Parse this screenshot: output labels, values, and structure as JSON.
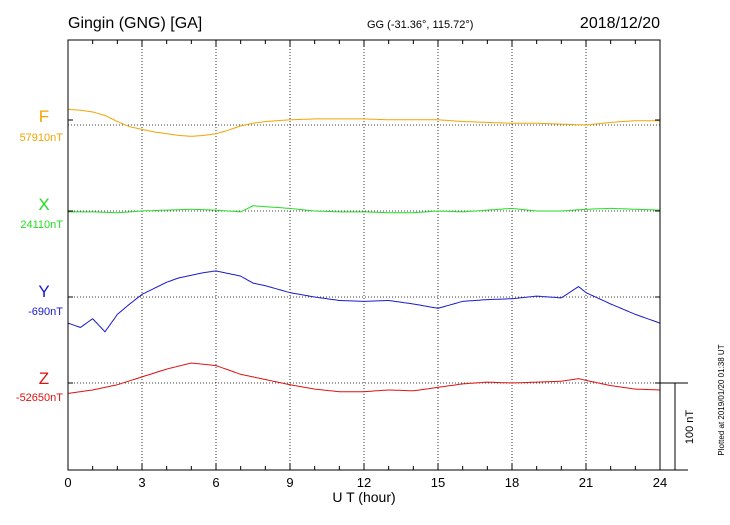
{
  "header": {
    "station": "Gingin (GNG)  [GA]",
    "coords": "GG (-31.36°, 115.72°)",
    "date": "2018/12/20"
  },
  "footer": {
    "plotted": "Plotted at 2019/01/20 01:38 UT"
  },
  "chart_data": {
    "type": "line",
    "xlabel": "U T (hour)",
    "xlim": [
      0,
      24
    ],
    "xticks": [
      0,
      3,
      6,
      9,
      12,
      15,
      18,
      21,
      24
    ],
    "scale_bar_label": "100 nT",
    "scale_bar_nT": 100,
    "grid": true,
    "series": [
      {
        "name": "F",
        "baseline_label": "57910nT",
        "color": "#f0a500",
        "points": [
          [
            0,
            18
          ],
          [
            0.5,
            17
          ],
          [
            1,
            15
          ],
          [
            1.5,
            11
          ],
          [
            2,
            4
          ],
          [
            2.5,
            -2
          ],
          [
            3,
            -5
          ],
          [
            3.5,
            -8
          ],
          [
            4,
            -10
          ],
          [
            4.5,
            -12
          ],
          [
            5,
            -13
          ],
          [
            5.5,
            -12
          ],
          [
            6,
            -10
          ],
          [
            6.5,
            -6
          ],
          [
            7,
            -1
          ],
          [
            7.5,
            2
          ],
          [
            8,
            4
          ],
          [
            9,
            6
          ],
          [
            10,
            7
          ],
          [
            11,
            7
          ],
          [
            12,
            7
          ],
          [
            13,
            6
          ],
          [
            14,
            6
          ],
          [
            15,
            6
          ],
          [
            16,
            4
          ],
          [
            17,
            3
          ],
          [
            18,
            2
          ],
          [
            19,
            2
          ],
          [
            20,
            1
          ],
          [
            21,
            0
          ],
          [
            22,
            3
          ],
          [
            23,
            5
          ],
          [
            24,
            5
          ]
        ]
      },
      {
        "name": "X",
        "baseline_label": "24110nT",
        "color": "#22dd22",
        "points": [
          [
            0,
            -1
          ],
          [
            1,
            -1
          ],
          [
            2,
            -2
          ],
          [
            2.5,
            -1
          ],
          [
            3,
            0
          ],
          [
            4,
            1
          ],
          [
            5,
            2
          ],
          [
            6,
            1
          ],
          [
            7,
            -1
          ],
          [
            7.5,
            6
          ],
          [
            8,
            5
          ],
          [
            9,
            3
          ],
          [
            10,
            0
          ],
          [
            11,
            -1
          ],
          [
            12,
            -1
          ],
          [
            13,
            -2
          ],
          [
            14,
            -2
          ],
          [
            15,
            0
          ],
          [
            16,
            -1
          ],
          [
            17,
            1
          ],
          [
            18,
            3
          ],
          [
            19,
            0
          ],
          [
            20,
            0
          ],
          [
            21,
            2
          ],
          [
            22,
            3
          ],
          [
            23,
            2
          ],
          [
            24,
            1
          ]
        ]
      },
      {
        "name": "Y",
        "baseline_label": "-690nT",
        "color": "#1a1acc",
        "points": [
          [
            0,
            -30
          ],
          [
            0.5,
            -35
          ],
          [
            1,
            -25
          ],
          [
            1.5,
            -40
          ],
          [
            2,
            -20
          ],
          [
            2.5,
            -8
          ],
          [
            3,
            3
          ],
          [
            3.5,
            10
          ],
          [
            4,
            17
          ],
          [
            4.5,
            22
          ],
          [
            5,
            25
          ],
          [
            5.5,
            28
          ],
          [
            6,
            30
          ],
          [
            6.5,
            27
          ],
          [
            7,
            24
          ],
          [
            7.5,
            16
          ],
          [
            8,
            13
          ],
          [
            8.5,
            9
          ],
          [
            9,
            5
          ],
          [
            10,
            0
          ],
          [
            11,
            -4
          ],
          [
            12,
            -5
          ],
          [
            13,
            -4
          ],
          [
            14,
            -8
          ],
          [
            15,
            -13
          ],
          [
            16,
            -5
          ],
          [
            17,
            -3
          ],
          [
            18,
            -2
          ],
          [
            19,
            1
          ],
          [
            20,
            -1
          ],
          [
            20.7,
            12
          ],
          [
            21,
            5
          ],
          [
            22,
            -8
          ],
          [
            23,
            -20
          ],
          [
            24,
            -30
          ]
        ]
      },
      {
        "name": "Z",
        "baseline_label": "-52650nT",
        "color": "#dd1111",
        "points": [
          [
            0,
            -12
          ],
          [
            1,
            -8
          ],
          [
            2,
            -2
          ],
          [
            3,
            7
          ],
          [
            4,
            16
          ],
          [
            5,
            23
          ],
          [
            6,
            20
          ],
          [
            7,
            10
          ],
          [
            8,
            4
          ],
          [
            9,
            -2
          ],
          [
            10,
            -7
          ],
          [
            11,
            -10
          ],
          [
            12,
            -10
          ],
          [
            13,
            -8
          ],
          [
            14,
            -9
          ],
          [
            15,
            -5
          ],
          [
            16,
            -1
          ],
          [
            17,
            1
          ],
          [
            18,
            0
          ],
          [
            19,
            1
          ],
          [
            20,
            2
          ],
          [
            20.7,
            5
          ],
          [
            21,
            3
          ],
          [
            22,
            -3
          ],
          [
            23,
            -7
          ],
          [
            24,
            -8
          ]
        ]
      }
    ]
  }
}
